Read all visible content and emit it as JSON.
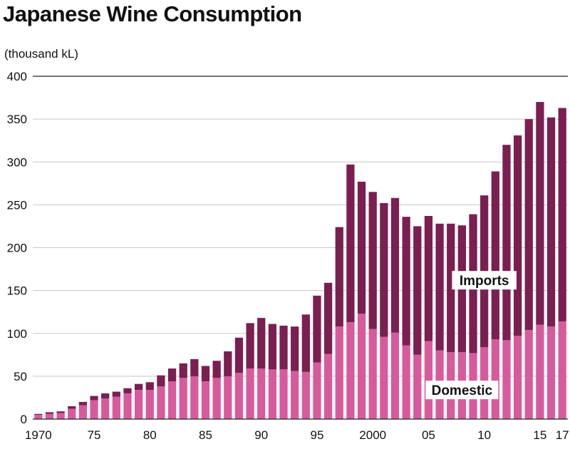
{
  "chart_data": {
    "type": "bar",
    "stacked": true,
    "title": "Japanese Wine Consumption",
    "ylabel": "(thousand kL)",
    "xlabel": "",
    "ylim": [
      0,
      400
    ],
    "yticks": [
      0,
      50,
      100,
      150,
      200,
      250,
      300,
      350,
      400
    ],
    "x_tick_labels": [
      "1970",
      "75",
      "80",
      "85",
      "90",
      "95",
      "2000",
      "05",
      "10",
      "15",
      "17"
    ],
    "x_tick_years": [
      1970,
      1975,
      1980,
      1985,
      1990,
      1995,
      2000,
      2005,
      2010,
      2015,
      2017
    ],
    "categories": [
      1970,
      1971,
      1972,
      1973,
      1974,
      1975,
      1976,
      1977,
      1978,
      1979,
      1980,
      1981,
      1982,
      1983,
      1984,
      1985,
      1986,
      1987,
      1988,
      1989,
      1990,
      1991,
      1992,
      1993,
      1994,
      1995,
      1996,
      1997,
      1998,
      1999,
      2000,
      2001,
      2002,
      2003,
      2004,
      2005,
      2006,
      2007,
      2008,
      2009,
      2010,
      2011,
      2012,
      2013,
      2014,
      2015,
      2016,
      2017
    ],
    "series": [
      {
        "name": "Domestic",
        "color": "#d75b9c",
        "values": [
          5,
          6,
          7,
          12,
          16,
          22,
          24,
          26,
          30,
          34,
          34,
          38,
          44,
          48,
          50,
          44,
          48,
          50,
          54,
          59,
          59,
          58,
          58,
          56,
          55,
          66,
          76,
          108,
          113,
          123,
          105,
          96,
          101,
          86,
          75,
          91,
          80,
          78,
          78,
          77,
          84,
          93,
          92,
          97,
          104,
          110,
          108,
          114
        ]
      },
      {
        "name": "Imports",
        "color": "#7a1f50",
        "values": [
          1,
          2,
          2,
          3,
          4,
          5,
          6,
          6,
          6,
          7,
          9,
          13,
          15,
          17,
          20,
          18,
          20,
          29,
          41,
          53,
          59,
          53,
          51,
          52,
          67,
          78,
          83,
          116,
          184,
          154,
          160,
          156,
          157,
          150,
          150,
          146,
          148,
          150,
          148,
          162,
          177,
          196,
          228,
          234,
          246,
          260,
          244,
          249
        ]
      }
    ],
    "annotations": [
      {
        "text": "Imports",
        "x": 2010,
        "y": 162
      },
      {
        "text": "Domestic",
        "x": 2008,
        "y": 34
      }
    ],
    "grid": true,
    "gridlines_color": "#c8c8c8"
  }
}
